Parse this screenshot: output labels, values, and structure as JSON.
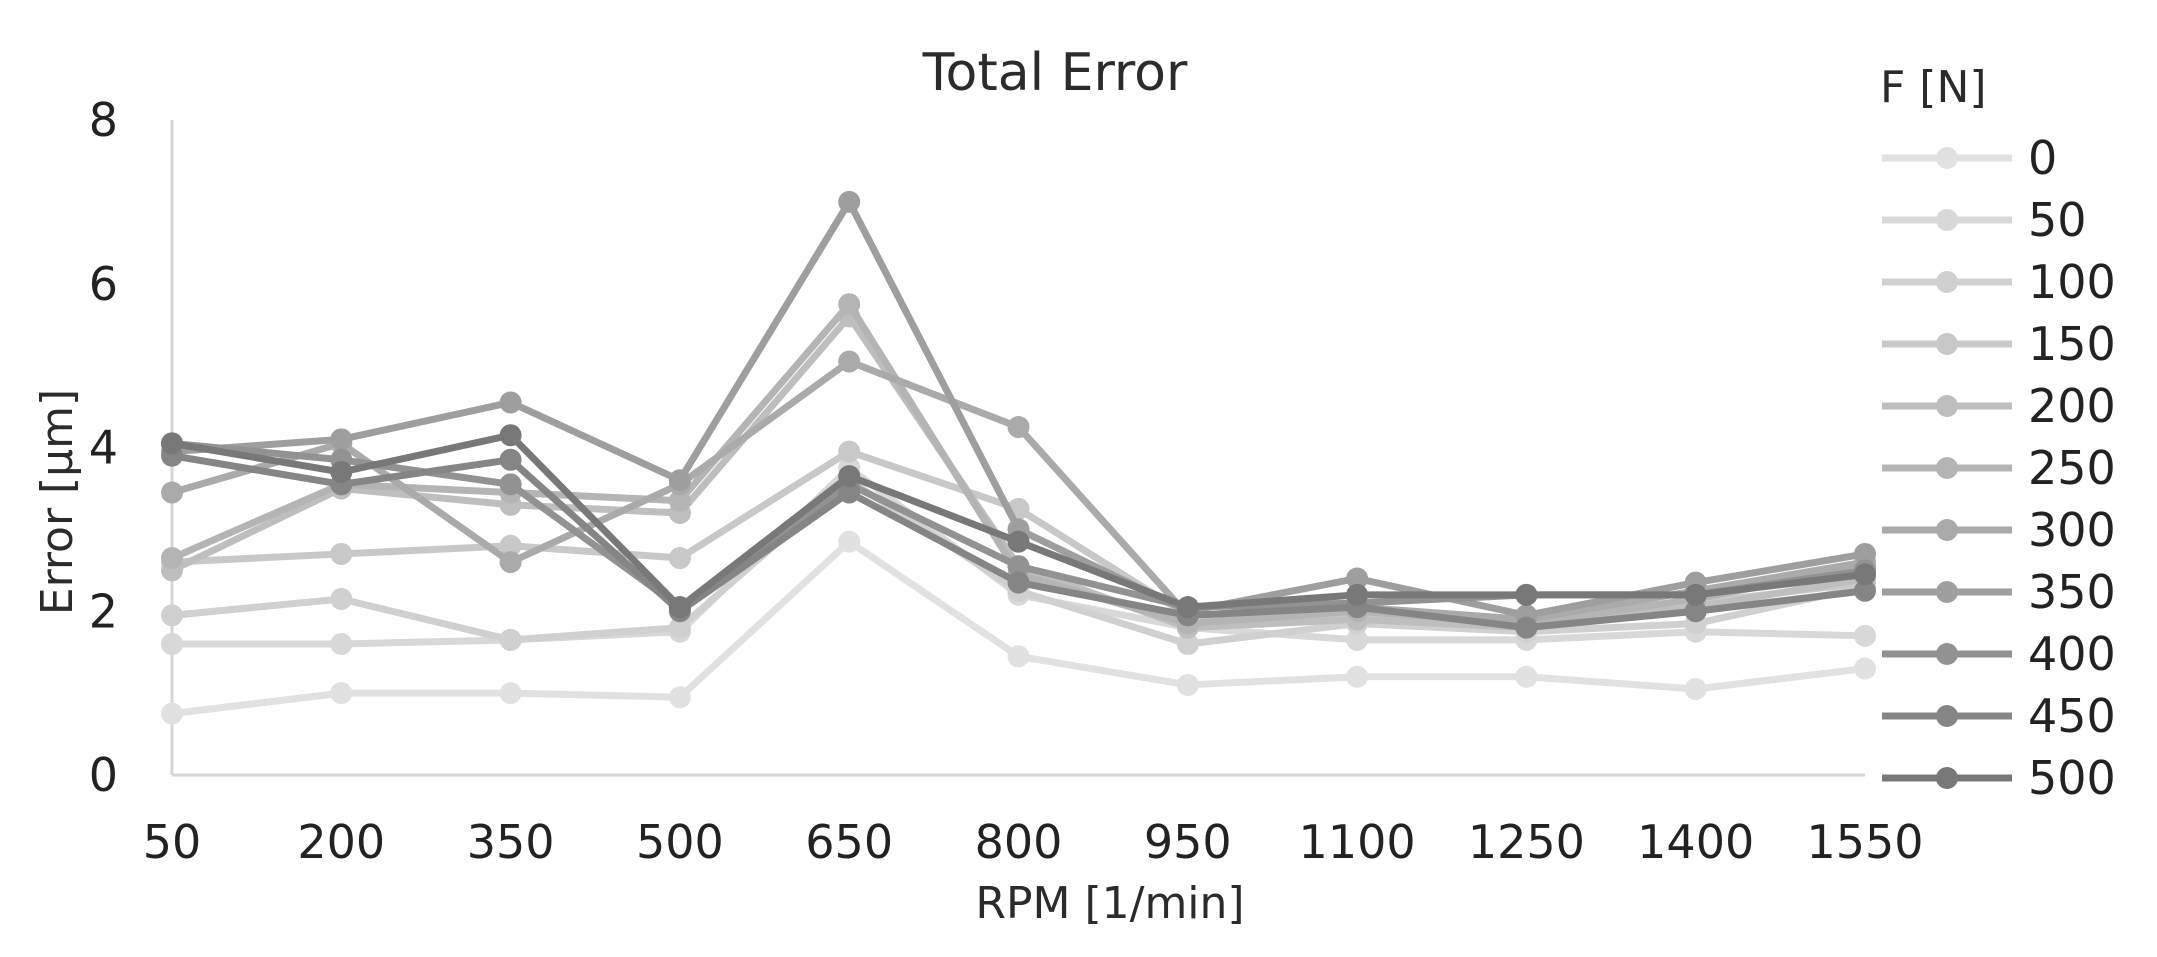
{
  "chart_data": {
    "type": "line",
    "title": "Total Error",
    "xlabel": "RPM [1/min]",
    "ylabel": "Error [µm]",
    "categories": [
      "50",
      "200",
      "350",
      "500",
      "650",
      "800",
      "950",
      "1100",
      "1250",
      "1400",
      "1550"
    ],
    "ylim": [
      0,
      8
    ],
    "yticks": [
      0,
      2,
      4,
      6,
      8
    ],
    "grid": false,
    "legend": {
      "title": "F [N]",
      "placement": "right"
    },
    "series": [
      {
        "name": "0",
        "color": "#e1e1e1",
        "values": [
          0.75,
          1.0,
          1.0,
          0.95,
          2.85,
          1.45,
          1.1,
          1.2,
          1.2,
          1.05,
          1.3
        ]
      },
      {
        "name": "50",
        "color": "#d8d8d8",
        "values": [
          1.6,
          1.6,
          1.65,
          1.75,
          3.75,
          2.2,
          1.8,
          1.65,
          1.65,
          1.75,
          1.7
        ]
      },
      {
        "name": "100",
        "color": "#d0d0d0",
        "values": [
          1.95,
          2.15,
          1.65,
          1.8,
          3.6,
          2.25,
          1.6,
          1.85,
          1.75,
          1.85,
          2.3
        ]
      },
      {
        "name": "150",
        "color": "#c8c8c8",
        "values": [
          2.6,
          2.7,
          2.8,
          2.65,
          3.95,
          3.25,
          1.95,
          1.95,
          1.8,
          2.1,
          2.35
        ]
      },
      {
        "name": "200",
        "color": "#bebebe",
        "values": [
          2.5,
          3.5,
          3.3,
          3.2,
          5.6,
          2.55,
          1.8,
          1.9,
          1.8,
          2.05,
          2.4
        ]
      },
      {
        "name": "250",
        "color": "#b4b4b4",
        "values": [
          2.65,
          3.55,
          3.45,
          3.35,
          5.75,
          2.45,
          1.85,
          2.0,
          1.85,
          2.15,
          2.55
        ]
      },
      {
        "name": "300",
        "color": "#aaaaaa",
        "values": [
          3.45,
          4.05,
          2.6,
          3.55,
          5.05,
          4.25,
          1.95,
          2.05,
          1.9,
          2.25,
          2.6
        ]
      },
      {
        "name": "350",
        "color": "#9e9e9e",
        "values": [
          3.95,
          4.1,
          4.55,
          3.6,
          7.0,
          3.0,
          2.0,
          2.4,
          1.95,
          2.35,
          2.7
        ]
      },
      {
        "name": "400",
        "color": "#929292",
        "values": [
          4.05,
          3.85,
          3.55,
          2.05,
          3.55,
          2.55,
          2.05,
          2.1,
          2.2,
          2.2,
          2.5
        ]
      },
      {
        "name": "450",
        "color": "#858585",
        "values": [
          3.9,
          3.55,
          3.85,
          2.0,
          3.45,
          2.35,
          1.95,
          2.05,
          1.8,
          2.0,
          2.25
        ]
      },
      {
        "name": "500",
        "color": "#787878",
        "values": [
          4.05,
          3.7,
          4.15,
          2.05,
          3.65,
          2.85,
          2.05,
          2.2,
          2.2,
          2.2,
          2.45
        ]
      }
    ]
  }
}
